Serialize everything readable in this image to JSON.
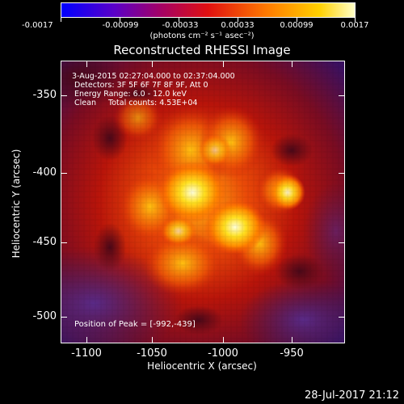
{
  "colorbar": {
    "ticks": [
      "-0.0017",
      "-0.00099",
      "-0.00033",
      "0.00033",
      "0.00099",
      "0.0017"
    ],
    "units": "(photons cm⁻² s⁻¹ asec⁻²)"
  },
  "title": "Reconstructed RHESSI Image",
  "annotations": {
    "time_range": " 3-Aug-2015 02:27:04.000 to 02:37:04.000",
    "detectors": "Detectors: 3F 5F 6F 7F 8F 9F, Att 0",
    "energy_range": "Energy Range: 6.0 - 12.0 keV",
    "clean": "Clean     Total counts: 4.53E+04",
    "peak": "Position of Peak = [-992,-439]"
  },
  "axes": {
    "xlabel": "Heliocentric X (arcsec)",
    "ylabel": "Heliocentric Y (arcsec)",
    "x_ticks": [
      "-1100",
      "-1050",
      "-1000",
      "-950"
    ],
    "y_ticks": [
      "-350",
      "-400",
      "-450",
      "-500"
    ]
  },
  "timestamp": "28-Jul-2017 21:12",
  "colors": {
    "bg": "#000000",
    "peak_hot": "#fff8c0",
    "mid_red": "#c81a0c",
    "dark_purple": "#3a1a5a"
  }
}
